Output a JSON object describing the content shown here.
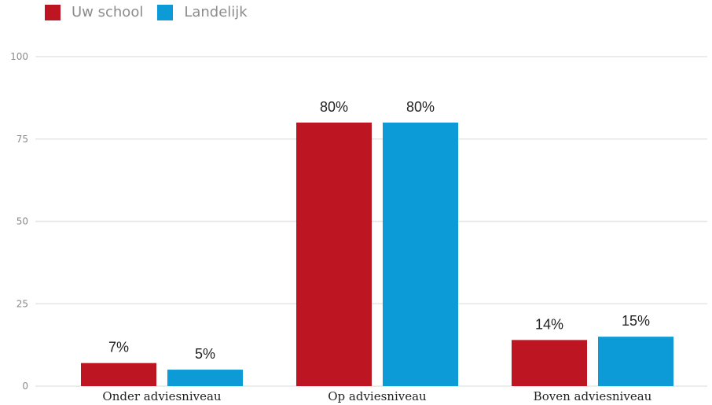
{
  "chart_data": {
    "type": "bar",
    "categories": [
      "Onder adviesniveau",
      "Op adviesniveau",
      "Boven adviesniveau"
    ],
    "series": [
      {
        "name": "Uw school",
        "values": [
          7,
          80,
          14
        ],
        "labels": [
          "7%",
          "80%",
          "14%"
        ],
        "color": "#bd1522"
      },
      {
        "name": "Landelijk",
        "values": [
          5,
          80,
          15
        ],
        "labels": [
          "5%",
          "80%",
          "15%"
        ],
        "color": "#0c9bd6"
      }
    ],
    "ylim": [
      0,
      100
    ],
    "yticks": [
      "0",
      "25",
      "50",
      "75",
      "100"
    ],
    "grid": true,
    "legend": "top-left",
    "title": "",
    "xlabel": "",
    "ylabel": ""
  }
}
